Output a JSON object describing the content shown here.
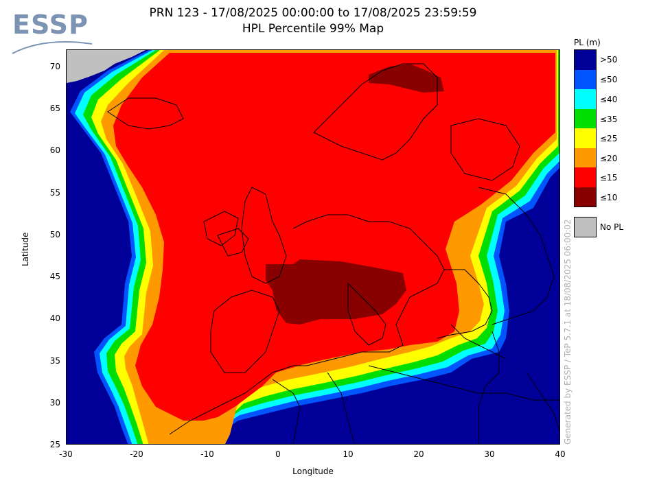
{
  "logo": {
    "text": "ESSP"
  },
  "title": {
    "line1": "PRN 123 - 17/08/2025 00:00:00 to 17/08/2025 23:59:59",
    "line2": "HPL Percentile 99% Map"
  },
  "axes": {
    "xlabel": "Longitude",
    "ylabel": "Latitude",
    "xlim": [
      -30,
      40
    ],
    "ylim": [
      25,
      72
    ],
    "xticks": [
      "-30",
      "-20",
      "-10",
      "0",
      "10",
      "20",
      "30",
      "40"
    ],
    "yticks": [
      "70",
      "65",
      "60",
      "55",
      "50",
      "45",
      "40",
      "35",
      "30",
      "25"
    ]
  },
  "legend": {
    "title": "PL (m)",
    "entries": [
      {
        "label": ">50",
        "color": "#000099"
      },
      {
        "label": "≤50",
        "color": "#0055ff"
      },
      {
        "label": "≤40",
        "color": "#00ffff"
      },
      {
        "label": "≤35",
        "color": "#00dd00"
      },
      {
        "label": "≤25",
        "color": "#ffff00"
      },
      {
        "label": "≤20",
        "color": "#ff9900"
      },
      {
        "label": "≤15",
        "color": "#ff0000"
      },
      {
        "label": "≤10",
        "color": "#880000"
      }
    ],
    "no_pl": {
      "label": "No PL",
      "color": "#c0c0c0"
    }
  },
  "watermark": "Generated by ESSP / TeP 5.7.1 at 18/08/2025 06:00:02"
}
